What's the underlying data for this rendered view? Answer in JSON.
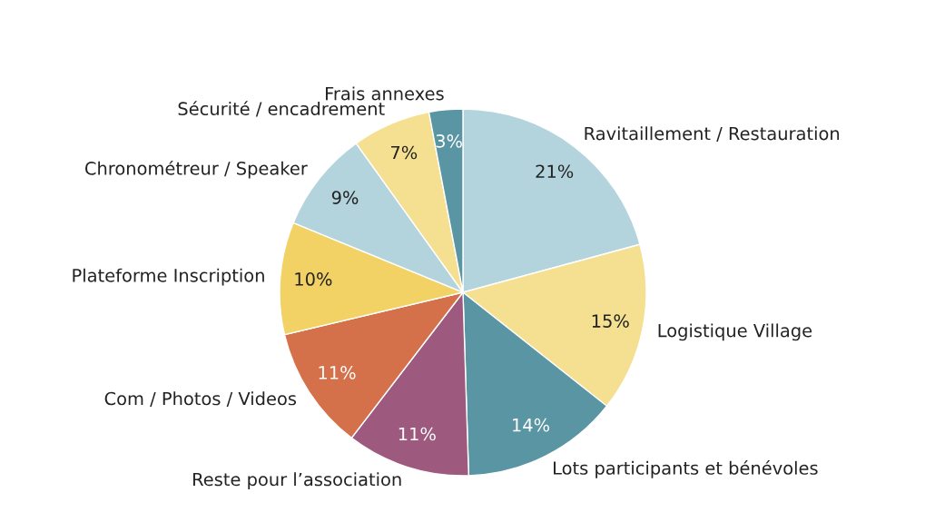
{
  "chart_data": {
    "type": "pie",
    "categories": [
      "Ravitaillement / Restauration",
      "Logistique Village",
      "Lots participants et bénévoles",
      "Reste pour l’association",
      "Com / Photos / Videos",
      "Plateforme Inscription",
      "Chronométreur / Speaker",
      "Sécurité / encadrement",
      "Frais annexes"
    ],
    "values": [
      21,
      15,
      14,
      11,
      11,
      10,
      9,
      7,
      3
    ],
    "value_labels": [
      "21%",
      "15%",
      "14%",
      "11%",
      "11%",
      "10%",
      "9%",
      "7%",
      "3%"
    ],
    "colors": [
      "#b3d4dd",
      "#f5df90",
      "#5a95a3",
      "#9e5a7e",
      "#d4704a",
      "#f2d264",
      "#b3d4dd",
      "#f5df90",
      "#5a95a3"
    ]
  }
}
